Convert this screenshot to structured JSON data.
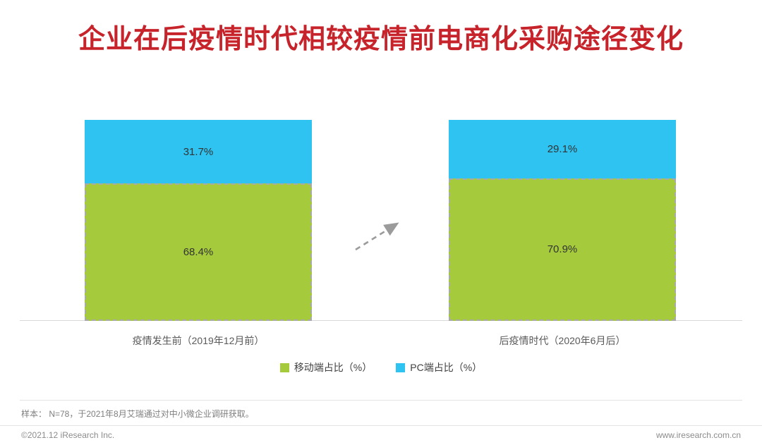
{
  "chart_data": {
    "type": "bar",
    "stacked": true,
    "title": "企业在后疫情时代相较疫情前电商化采购途径变化",
    "categories": [
      "疫情发生前（2019年12月前）",
      "后疫情时代（2020年6月后）"
    ],
    "series": [
      {
        "name": "移动端占比（%）",
        "color": "#A5CB3C",
        "values": [
          68.4,
          70.9
        ]
      },
      {
        "name": "PC端占比（%）",
        "color": "#2EC3F1",
        "values": [
          31.7,
          29.1
        ]
      }
    ],
    "value_suffix": "%",
    "ylim": [
      0,
      100
    ],
    "legend_position": "bottom",
    "annotations": [
      {
        "type": "arrow",
        "style": "dashed",
        "direction": "up-right",
        "color": "#9b9b9b"
      }
    ]
  },
  "footer": {
    "sample_note": "样本：  N=78，于2021年8月艾瑞通过对中小微企业调研获取。",
    "copyright": "©2021.12 iResearch Inc.",
    "website": "www.iresearch.com.cn"
  },
  "colors": {
    "title_red": "#C7232B",
    "mobile_green": "#A5CB3C",
    "pc_cyan": "#2EC3F1",
    "dashed_border": "#a9a9a9"
  }
}
